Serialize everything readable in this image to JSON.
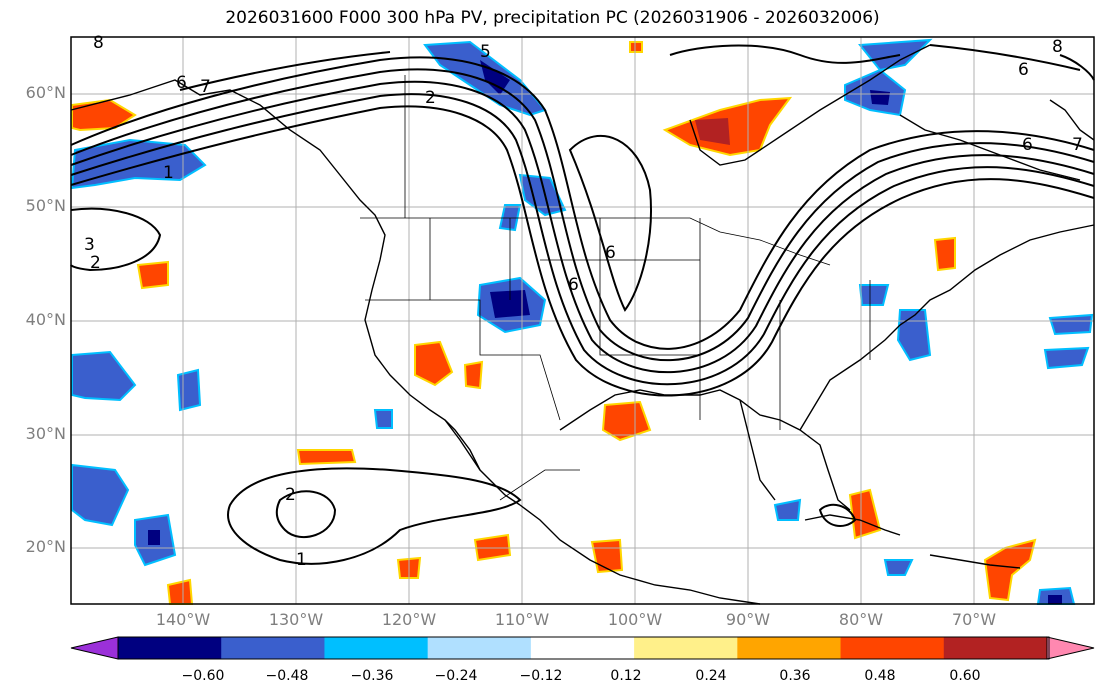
{
  "title": "2026031600 F000 300 hPa PV, precipitation PC (2026031906 - 2026032006)",
  "lat_labels": [
    "60°N",
    "50°N",
    "40°N",
    "30°N",
    "20°N"
  ],
  "lon_labels": [
    "140°W",
    "130°W",
    "120°W",
    "110°W",
    "100°W",
    "90°W",
    "80°W",
    "70°W"
  ],
  "colorbar": {
    "ticks": [
      "−0.60",
      "−0.48",
      "−0.36",
      "−0.24",
      "−0.12",
      "0.12",
      "0.24",
      "0.36",
      "0.48",
      "0.60"
    ],
    "colors": [
      "#9b30d9",
      "#000080",
      "#3a5fcd",
      "#00bfff",
      "#b0e0ff",
      "#ffffff",
      "#fff08a",
      "#ffa500",
      "#ff4500",
      "#b22222",
      "#ff88b0"
    ]
  },
  "contour_labels": [
    "8",
    "6",
    "7",
    "5",
    "2",
    "1",
    "3",
    "2",
    "6",
    "6",
    "7",
    "6",
    "6",
    "8",
    "2",
    "1"
  ]
}
